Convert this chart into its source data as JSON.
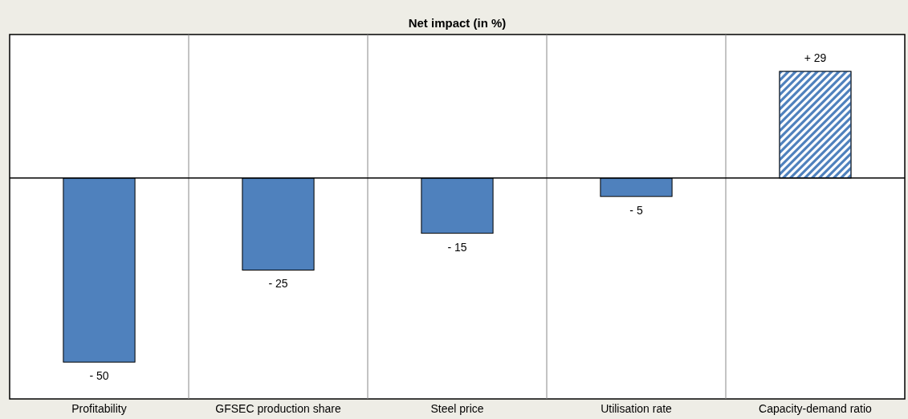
{
  "chart_data": {
    "type": "bar",
    "title": "Net impact (in %)",
    "categories": [
      "Profitability",
      "GFSEC production share",
      "Steel price",
      "Utilisation rate",
      "Capacity-demand ratio"
    ],
    "values": [
      -50,
      -25,
      -15,
      -5,
      29
    ],
    "colors": [
      "#4f81bd",
      "#4f81bd",
      "#4f81bd",
      "#4f81bd",
      "#4f81bd"
    ],
    "value_labels": [
      "- 50",
      "- 25",
      "- 15",
      "- 5",
      "+ 29"
    ],
    "ylim": [
      -60,
      39
    ],
    "grid": "x"
  }
}
